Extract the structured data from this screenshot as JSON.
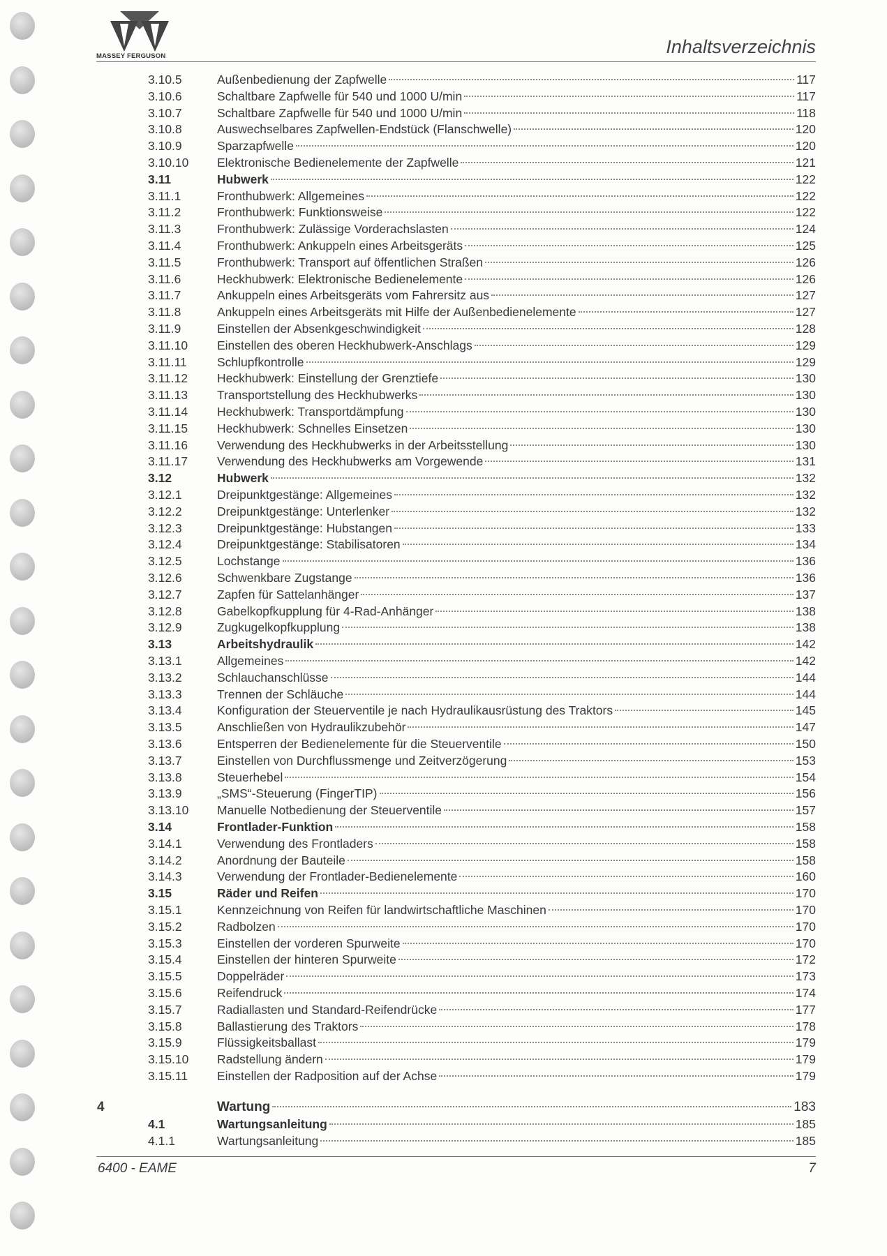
{
  "header": {
    "brand": "MASSEY FERGUSON",
    "title": "Inhaltsverzeichnis"
  },
  "footer": {
    "model": "6400 - EAME",
    "page": "7"
  },
  "entries": [
    {
      "num": "3.10.5",
      "title": "Außenbedienung der Zapfwelle",
      "page": "117"
    },
    {
      "num": "3.10.6",
      "title": "Schaltbare Zapfwelle für 540 und 1000 U/min",
      "page": "117"
    },
    {
      "num": "3.10.7",
      "title": "Schaltbare Zapfwelle für 540 und 1000 U/min",
      "page": "118"
    },
    {
      "num": "3.10.8",
      "title": "Auswechselbares Zapfwellen-Endstück (Flanschwelle)",
      "page": "120"
    },
    {
      "num": "3.10.9",
      "title": "Sparzapfwelle",
      "page": "120"
    },
    {
      "num": "3.10.10",
      "title": "Elektronische Bedienelemente der Zapfwelle",
      "page": "121"
    },
    {
      "num": "3.11",
      "title": "Hubwerk",
      "page": "122",
      "bold": true
    },
    {
      "num": "3.11.1",
      "title": "Fronthubwerk: Allgemeines",
      "page": "122"
    },
    {
      "num": "3.11.2",
      "title": "Fronthubwerk: Funktionsweise",
      "page": "122"
    },
    {
      "num": "3.11.3",
      "title": "Fronthubwerk: Zulässige Vorderachslasten",
      "page": "124"
    },
    {
      "num": "3.11.4",
      "title": "Fronthubwerk: Ankuppeln eines Arbeitsgeräts",
      "page": "125"
    },
    {
      "num": "3.11.5",
      "title": "Fronthubwerk: Transport auf öffentlichen Straßen",
      "page": "126"
    },
    {
      "num": "3.11.6",
      "title": "Heckhubwerk: Elektronische Bedienelemente",
      "page": "126"
    },
    {
      "num": "3.11.7",
      "title": "Ankuppeln eines Arbeitsgeräts vom Fahrersitz aus",
      "page": "127"
    },
    {
      "num": "3.11.8",
      "title": "Ankuppeln eines Arbeitsgeräts mit Hilfe der Außenbedienelemente",
      "page": "127"
    },
    {
      "num": "3.11.9",
      "title": "Einstellen der Absenkgeschwindigkeit",
      "page": "128"
    },
    {
      "num": "3.11.10",
      "title": "Einstellen des oberen Heckhubwerk-Anschlags",
      "page": "129"
    },
    {
      "num": "3.11.11",
      "title": "Schlupfkontrolle",
      "page": "129"
    },
    {
      "num": "3.11.12",
      "title": "Heckhubwerk: Einstellung der Grenztiefe",
      "page": "130"
    },
    {
      "num": "3.11.13",
      "title": "Transportstellung des Heckhubwerks",
      "page": "130"
    },
    {
      "num": "3.11.14",
      "title": "Heckhubwerk: Transportdämpfung",
      "page": "130"
    },
    {
      "num": "3.11.15",
      "title": "Heckhubwerk: Schnelles Einsetzen",
      "page": "130"
    },
    {
      "num": "3.11.16",
      "title": "Verwendung des Heckhubwerks in der Arbeitsstellung",
      "page": "130"
    },
    {
      "num": "3.11.17",
      "title": "Verwendung des Heckhubwerks am Vorgewende",
      "page": "131"
    },
    {
      "num": "3.12",
      "title": "Hubwerk",
      "page": "132",
      "bold": true
    },
    {
      "num": "3.12.1",
      "title": "Dreipunktgestänge: Allgemeines",
      "page": "132"
    },
    {
      "num": "3.12.2",
      "title": "Dreipunktgestänge: Unterlenker",
      "page": "132"
    },
    {
      "num": "3.12.3",
      "title": "Dreipunktgestänge: Hubstangen",
      "page": "133"
    },
    {
      "num": "3.12.4",
      "title": "Dreipunktgestänge: Stabilisatoren",
      "page": "134"
    },
    {
      "num": "3.12.5",
      "title": "Lochstange",
      "page": "136"
    },
    {
      "num": "3.12.6",
      "title": "Schwenkbare Zugstange",
      "page": "136"
    },
    {
      "num": "3.12.7",
      "title": "Zapfen für Sattelanhänger",
      "page": "137"
    },
    {
      "num": "3.12.8",
      "title": "Gabelkopfkupplung für 4-Rad-Anhänger",
      "page": "138"
    },
    {
      "num": "3.12.9",
      "title": "Zugkugelkopfkupplung",
      "page": "138"
    },
    {
      "num": "3.13",
      "title": "Arbeitshydraulik",
      "page": "142",
      "bold": true
    },
    {
      "num": "3.13.1",
      "title": "Allgemeines",
      "page": "142"
    },
    {
      "num": "3.13.2",
      "title": "Schlauchanschlüsse",
      "page": "144"
    },
    {
      "num": "3.13.3",
      "title": "Trennen der Schläuche",
      "page": "144"
    },
    {
      "num": "3.13.4",
      "title": "Konfiguration der Steuerventile je nach Hydraulikausrüstung des Traktors",
      "page": "145"
    },
    {
      "num": "3.13.5",
      "title": "Anschließen von Hydraulikzubehör",
      "page": "147"
    },
    {
      "num": "3.13.6",
      "title": "Entsperren der Bedienelemente für die Steuerventile",
      "page": "150"
    },
    {
      "num": "3.13.7",
      "title": "Einstellen von Durchflussmenge und Zeitverzögerung",
      "page": "153"
    },
    {
      "num": "3.13.8",
      "title": "Steuerhebel",
      "page": "154"
    },
    {
      "num": "3.13.9",
      "title": "„SMS“-Steuerung (FingerTIP)",
      "page": "156"
    },
    {
      "num": "3.13.10",
      "title": "Manuelle Notbedienung der Steuerventile",
      "page": "157"
    },
    {
      "num": "3.14",
      "title": "Frontlader-Funktion",
      "page": "158",
      "bold": true
    },
    {
      "num": "3.14.1",
      "title": "Verwendung des Frontladers",
      "page": "158"
    },
    {
      "num": "3.14.2",
      "title": "Anordnung der Bauteile",
      "page": "158"
    },
    {
      "num": "3.14.3",
      "title": "Verwendung der Frontlader-Bedienelemente",
      "page": "160"
    },
    {
      "num": "3.15",
      "title": "Räder und Reifen",
      "page": "170",
      "bold": true
    },
    {
      "num": "3.15.1",
      "title": "Kennzeichnung von Reifen für landwirtschaftliche Maschinen",
      "page": "170"
    },
    {
      "num": "3.15.2",
      "title": "Radbolzen",
      "page": "170"
    },
    {
      "num": "3.15.3",
      "title": "Einstellen der vorderen Spurweite",
      "page": "170"
    },
    {
      "num": "3.15.4",
      "title": "Einstellen der hinteren Spurweite",
      "page": "172"
    },
    {
      "num": "3.15.5",
      "title": "Doppelräder",
      "page": "173"
    },
    {
      "num": "3.15.6",
      "title": "Reifendruck",
      "page": "174"
    },
    {
      "num": "3.15.7",
      "title": "Radiallasten und Standard-Reifendrücke",
      "page": "177"
    },
    {
      "num": "3.15.8",
      "title": "Ballastierung des Traktors",
      "page": "178"
    },
    {
      "num": "3.15.9",
      "title": "Flüssigkeitsballast",
      "page": "179"
    },
    {
      "num": "3.15.10",
      "title": "Radstellung ändern",
      "page": "179"
    },
    {
      "num": "3.15.11",
      "title": "Einstellen der Radposition auf der Achse",
      "page": "179"
    }
  ],
  "chapter": {
    "num": "4",
    "title": "Wartung",
    "page": "183"
  },
  "chapter_entries": [
    {
      "num": "4.1",
      "title": "Wartungsanleitung",
      "page": "185",
      "bold": true
    },
    {
      "num": "4.1.1",
      "title": "Wartungsanleitung",
      "page": "185"
    }
  ]
}
